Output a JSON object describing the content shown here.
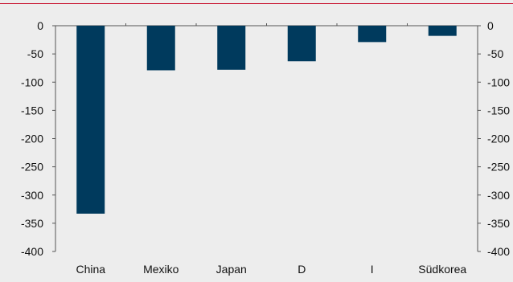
{
  "chart_data": {
    "type": "bar",
    "categories": [
      "China",
      "Mexiko",
      "Japan",
      "D",
      "I",
      "Südkorea"
    ],
    "values": [
      -333,
      -79,
      -78,
      -63,
      -29,
      -18
    ],
    "ylim": [
      -400,
      0
    ],
    "yticks": [
      0,
      -50,
      -100,
      -150,
      -200,
      -250,
      -300,
      -350,
      -400
    ],
    "xlabel": "",
    "ylabel": "",
    "grid": false,
    "secondary_y_axis": true
  },
  "colors": {
    "background": "#ededed",
    "bar": "#003a5d",
    "axis": "#555555",
    "text": "#111111",
    "top_rule": "#c8102e"
  }
}
